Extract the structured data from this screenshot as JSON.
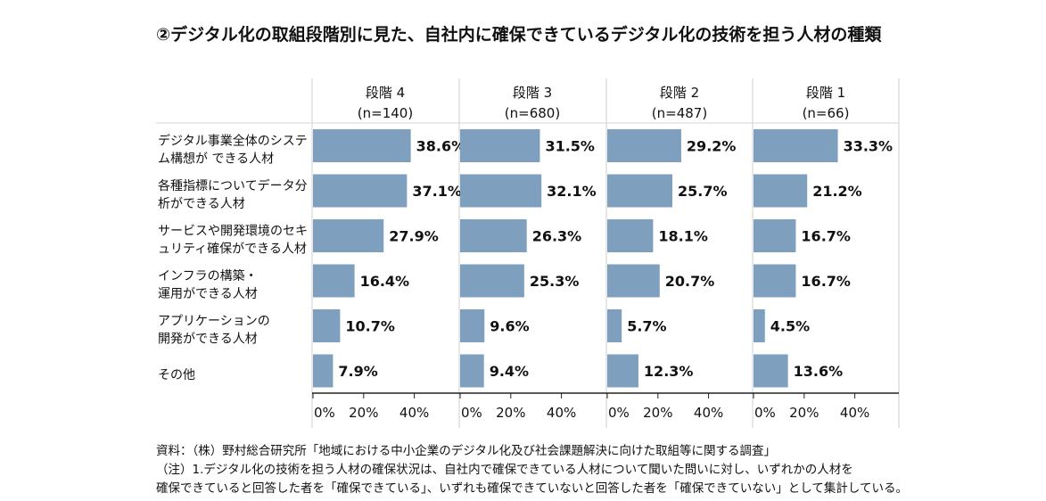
{
  "title": "②デジタル化の取組段階別に見た、自社内に確保できているデジタル化の技術を担う人材の種類",
  "chart_data": {
    "type": "bar",
    "orientation": "horizontal",
    "title": "②デジタル化の取組段階別に見た、自社内に確保できているデジタル化の技術を担う人材の種類",
    "categories": [
      [
        "デジタル事業全体のシステ",
        "ム構想が できる人材"
      ],
      [
        "各種指標についてデータ分",
        "析ができる人材"
      ],
      [
        "サービスや開発環境のセキ",
        "ュリティ確保ができる人材"
      ],
      [
        "インフラの構築・",
        "運用ができる人材"
      ],
      [
        "アプリケーションの",
        "開発ができる人材"
      ],
      [
        "その他"
      ]
    ],
    "panels": [
      {
        "name": "段階 4",
        "n": "(n=140)",
        "values": [
          38.6,
          37.1,
          27.9,
          16.4,
          10.7,
          7.9
        ],
        "labels": [
          "38.6%",
          "37.1%",
          "27.9%",
          "16.4%",
          "10.7%",
          "7.9%"
        ]
      },
      {
        "name": "段階 3",
        "n": "(n=680)",
        "values": [
          31.5,
          32.1,
          26.3,
          25.3,
          9.6,
          9.4
        ],
        "labels": [
          "31.5%",
          "32.1%",
          "26.3%",
          "25.3%",
          "9.6%",
          "9.4%"
        ]
      },
      {
        "name": "段階 2",
        "n": "(n=487)",
        "values": [
          29.2,
          25.7,
          18.1,
          20.7,
          5.7,
          12.3
        ],
        "labels": [
          "29.2%",
          "25.7%",
          "18.1%",
          "20.7%",
          "5.7%",
          "12.3%"
        ]
      },
      {
        "name": "段階 1",
        "n": "(n=66)",
        "values": [
          33.3,
          21.2,
          16.7,
          16.7,
          4.5,
          13.6
        ],
        "labels": [
          "33.3%",
          "21.2%",
          "16.7%",
          "16.7%",
          "4.5%",
          "13.6%"
        ]
      }
    ],
    "xticks": [
      "0%",
      "20%",
      "40%"
    ],
    "xlim": [
      0,
      60
    ],
    "bar_color": "#7f9fbf",
    "grid": false
  },
  "footer": {
    "source": "資料：（株）野村総合研究所「地域における中小企業のデジタル化及び社会課題解決に向けた取組等に関する調査」",
    "note1": "（注）1.デジタル化の技術を担う人材の確保状況は、自社内で確保できている人材について聞いた問いに対し、いずれかの人材を",
    "note2": "確保できていると回答した者を「確保できている」、いずれも確保できていないと回答した者を「確保できていない」として集計している。"
  }
}
